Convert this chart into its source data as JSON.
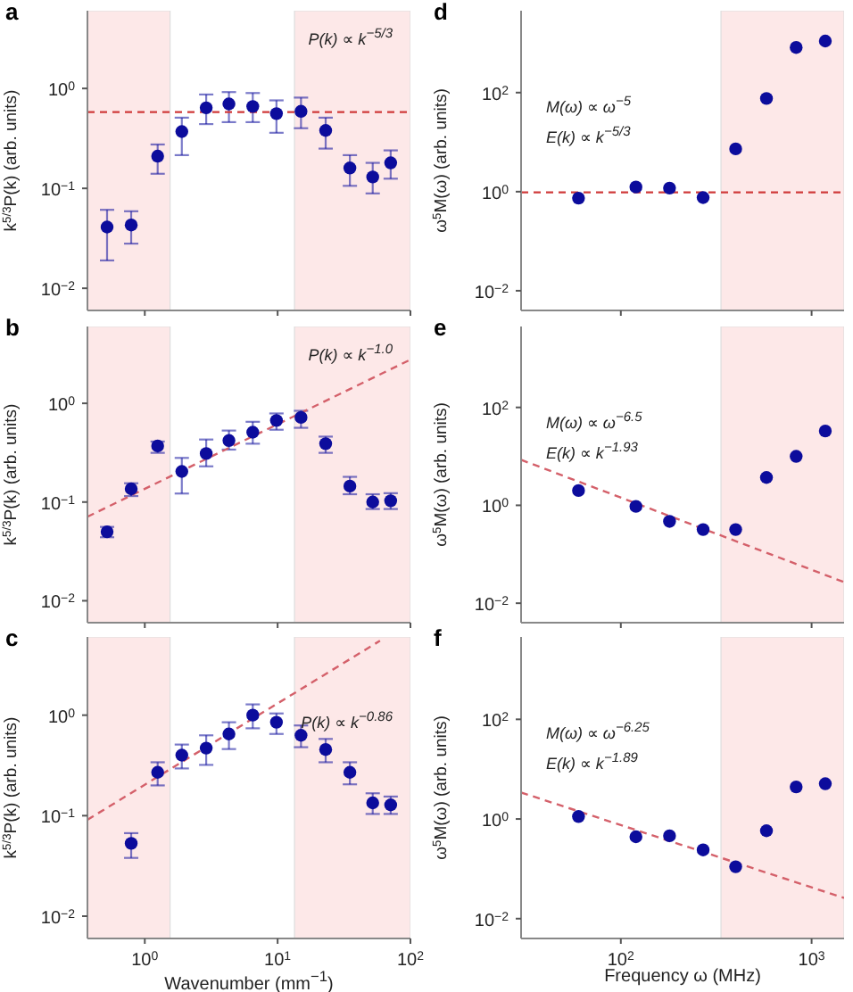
{
  "chart_data": [
    {
      "type": "scatter",
      "title": "a",
      "ylabel": "k$^{5/3}$P(k) (arb. units)",
      "annotations": [
        "P(k) ∝ k$^{−5/3}$"
      ],
      "x": [
        0.52,
        0.79,
        1.25,
        1.9,
        2.9,
        4.3,
        6.5,
        9.8,
        15,
        23,
        35,
        52,
        71
      ],
      "series": [
        {
          "type": "scatter",
          "color": "#0c0c9c",
          "marker": "circle",
          "values": [
            0.041,
            0.043,
            0.21,
            0.37,
            0.64,
            0.7,
            0.66,
            0.56,
            0.59,
            0.38,
            0.16,
            0.13,
            0.18
          ],
          "errors": [
            [
              0.019,
              0.061
            ],
            [
              0.028,
              0.059
            ],
            [
              0.14,
              0.275
            ],
            [
              0.215,
              0.51
            ],
            [
              0.44,
              0.87
            ],
            [
              0.46,
              0.92
            ],
            [
              0.46,
              0.9
            ],
            [
              0.36,
              0.76
            ],
            [
              0.4,
              0.81
            ],
            [
              0.25,
              0.51
            ],
            [
              0.106,
              0.215
            ],
            [
              0.089,
              0.18
            ],
            [
              0.125,
              0.24
            ]
          ]
        },
        {
          "type": "line",
          "color": "#d03a3a",
          "marker": "none",
          "line_style": "dashed",
          "x": [
            0.37,
            100
          ],
          "values": [
            0.58,
            0.58
          ]
        }
      ],
      "xlim": [
        0.37,
        100
      ],
      "ylim": [
        0.006,
        6
      ],
      "xticks": [
        {
          "value": 1,
          "label": null
        },
        {
          "value": 10,
          "label": null
        },
        {
          "value": 100,
          "label": null
        }
      ],
      "yticks": [
        {
          "value": 0.01,
          "label": "10$^{−2}$"
        },
        {
          "value": 0.1,
          "label": "10$^{−1}$"
        },
        {
          "value": 1,
          "label": "10$^{0}$"
        }
      ],
      "log": "xy",
      "tick_labels": "y",
      "bands": [
        {
          "axis": "x",
          "from": 0.37,
          "to": 1.55,
          "color": "#fde8e8"
        },
        {
          "axis": "x",
          "from": 13.4,
          "to": 100,
          "color": "#fde8e8"
        }
      ]
    },
    {
      "type": "scatter",
      "title": "b",
      "ylabel": "k$^{5/3}$P(k) (arb. units)",
      "annotations": [
        "P(k) ∝ k$^{−1.0}$"
      ],
      "x": [
        0.52,
        0.79,
        1.25,
        1.9,
        2.9,
        4.3,
        6.5,
        9.8,
        15,
        23,
        35,
        52,
        71
      ],
      "series": [
        {
          "type": "scatter",
          "color": "#0c0c9c",
          "marker": "circle",
          "values": [
            0.05,
            0.136,
            0.37,
            0.204,
            0.31,
            0.42,
            0.51,
            0.67,
            0.72,
            0.39,
            0.145,
            0.1,
            0.103
          ],
          "errors": [
            [
              0.044,
              0.056
            ],
            [
              0.115,
              0.155
            ],
            [
              0.315,
              0.41
            ],
            [
              0.122,
              0.28
            ],
            [
              0.23,
              0.43
            ],
            [
              0.34,
              0.53
            ],
            [
              0.39,
              0.65
            ],
            [
              0.54,
              0.79
            ],
            [
              0.565,
              0.84
            ],
            [
              0.315,
              0.46
            ],
            [
              0.12,
              0.18
            ],
            [
              0.085,
              0.12
            ],
            [
              0.085,
              0.123
            ]
          ]
        },
        {
          "type": "line",
          "color": "#d4606a",
          "marker": "none",
          "line_style": "dashed",
          "x": [
            0.37,
            100
          ],
          "values": [
            0.071,
            2.77
          ]
        }
      ],
      "xlim": [
        0.37,
        100
      ],
      "ylim": [
        0.006,
        6
      ],
      "xticks": [
        {
          "value": 1,
          "label": null
        },
        {
          "value": 10,
          "label": null
        },
        {
          "value": 100,
          "label": null
        }
      ],
      "yticks": [
        {
          "value": 0.01,
          "label": "10$^{−2}$"
        },
        {
          "value": 0.1,
          "label": "10$^{−1}$"
        },
        {
          "value": 1,
          "label": "10$^{0}$"
        }
      ],
      "log": "xy",
      "tick_labels": "y",
      "bands": [
        {
          "axis": "x",
          "from": 0.37,
          "to": 1.55,
          "color": "#fde8e8"
        },
        {
          "axis": "x",
          "from": 13.4,
          "to": 100,
          "color": "#fde8e8"
        }
      ]
    },
    {
      "type": "scatter",
      "title": "c",
      "ylabel": "k$^{5/3}$P(k) (arb. units)",
      "xlabel": "Wavenumber (mm$^{−1}$)",
      "annotations": [
        "P(k) ∝ k$^{−0.86}$"
      ],
      "x": [
        0.79,
        1.25,
        1.9,
        2.9,
        4.3,
        6.5,
        9.8,
        15,
        23,
        35,
        52,
        71
      ],
      "series": [
        {
          "type": "scatter",
          "color": "#0c0c9c",
          "marker": "circle",
          "values": [
            0.053,
            0.27,
            0.4,
            0.47,
            0.65,
            1.0,
            0.85,
            0.63,
            0.455,
            0.27,
            0.134,
            0.128
          ],
          "errors": [
            [
              0.038,
              0.067
            ],
            [
              0.2,
              0.34
            ],
            [
              0.295,
              0.51
            ],
            [
              0.32,
              0.63
            ],
            [
              0.46,
              0.85
            ],
            [
              0.74,
              1.28
            ],
            [
              0.65,
              1.04
            ],
            [
              0.48,
              0.79
            ],
            [
              0.34,
              0.58
            ],
            [
              0.205,
              0.34
            ],
            [
              0.104,
              0.167
            ],
            [
              0.104,
              0.155
            ]
          ]
        },
        {
          "type": "line",
          "color": "#d4606a",
          "marker": "none",
          "line_style": "dashed",
          "x": [
            0.37,
            59
          ],
          "values": [
            0.091,
            5.5
          ]
        }
      ],
      "xlim": [
        0.37,
        100
      ],
      "ylim": [
        0.006,
        6
      ],
      "xticks": [
        {
          "value": 1,
          "label": "10$^{0}$"
        },
        {
          "value": 10,
          "label": "10$^{1}$"
        },
        {
          "value": 100,
          "label": "10$^{2}$"
        }
      ],
      "yticks": [
        {
          "value": 0.01,
          "label": "10$^{−2}$"
        },
        {
          "value": 0.1,
          "label": "10$^{−1}$"
        },
        {
          "value": 1,
          "label": "10$^{0}$"
        }
      ],
      "log": "xy",
      "bands": [
        {
          "axis": "x",
          "from": 0.37,
          "to": 1.55,
          "color": "#fde8e8"
        },
        {
          "axis": "x",
          "from": 13.4,
          "to": 100,
          "color": "#fde8e8"
        }
      ]
    },
    {
      "type": "scatter",
      "title": "d",
      "ylabel": "ω$^{5}$M(ω) (arb. units)",
      "annotations": [
        "M(ω) ∝ ω$^{−5}$",
        "E(k) ∝ k$^{−5/3}$"
      ],
      "x": [
        60,
        120,
        180,
        270,
        400,
        580,
        830,
        1180
      ],
      "series": [
        {
          "type": "scatter",
          "color": "#0c0c9c",
          "marker": "circle",
          "values": [
            0.74,
            1.24,
            1.18,
            0.76,
            7.3,
            76,
            815,
            1100
          ]
        },
        {
          "type": "line",
          "color": "#d03a3a",
          "marker": "none",
          "line_style": "dashed",
          "x": [
            30,
            1480
          ],
          "values": [
            0.97,
            0.97
          ]
        }
      ],
      "xlim": [
        30,
        1480
      ],
      "ylim": [
        0.004,
        4500
      ],
      "xticks": [
        {
          "value": 100,
          "label": null
        },
        {
          "value": 1000,
          "label": null
        }
      ],
      "yticks": [
        {
          "value": 0.01,
          "label": "10$^{−2}$"
        },
        {
          "value": 1,
          "label": "10$^{0}$"
        },
        {
          "value": 100,
          "label": "10$^{2}$"
        }
      ],
      "log": "xy",
      "tick_labels": "y",
      "bands": [
        {
          "axis": "x",
          "from": 335,
          "to": 1480,
          "color": "#fde8e8"
        }
      ]
    },
    {
      "type": "scatter",
      "title": "e",
      "ylabel": "ω$^{5}$M(ω) (arb. units)",
      "annotations": [
        "M(ω) ∝ ω$^{−6.5}$",
        "E(k) ∝ k$^{−1.93}$"
      ],
      "x": [
        60,
        120,
        180,
        270,
        400,
        580,
        830,
        1180
      ],
      "series": [
        {
          "type": "scatter",
          "color": "#0c0c9c",
          "marker": "circle",
          "values": [
            2.0,
            0.95,
            0.47,
            0.32,
            0.32,
            3.7,
            10,
            33
          ]
        },
        {
          "type": "line",
          "color": "#d4606a",
          "marker": "none",
          "line_style": "dashed",
          "x": [
            30,
            1480
          ],
          "values": [
            8.5,
            0.027
          ]
        }
      ],
      "xlim": [
        30,
        1480
      ],
      "ylim": [
        0.004,
        4500
      ],
      "xticks": [
        {
          "value": 100,
          "label": null
        },
        {
          "value": 1000,
          "label": null
        }
      ],
      "yticks": [
        {
          "value": 0.01,
          "label": "10$^{−2}$"
        },
        {
          "value": 1,
          "label": "10$^{0}$"
        },
        {
          "value": 100,
          "label": "10$^{2}$"
        }
      ],
      "log": "xy",
      "tick_labels": "y",
      "bands": [
        {
          "axis": "x",
          "from": 335,
          "to": 1480,
          "color": "#fde8e8"
        }
      ]
    },
    {
      "type": "scatter",
      "title": "f",
      "ylabel": "ω$^{5}$M(ω) (arb. units)",
      "xlabel": "Frequency ω (MHz)",
      "annotations": [
        "M(ω) ∝ ω$^{−6.25}$",
        "E(k) ∝ k$^{−1.89}$"
      ],
      "x": [
        60,
        120,
        180,
        270,
        400,
        580,
        830,
        1180
      ],
      "series": [
        {
          "type": "scatter",
          "color": "#0c0c9c",
          "marker": "circle",
          "values": [
            1.12,
            0.44,
            0.46,
            0.24,
            0.11,
            0.58,
            4.4,
            5.1
          ]
        },
        {
          "type": "line",
          "color": "#d4606a",
          "marker": "none",
          "line_style": "dashed",
          "x": [
            30,
            1480
          ],
          "values": [
            3.4,
            0.026
          ]
        }
      ],
      "xlim": [
        30,
        1480
      ],
      "ylim": [
        0.004,
        4500
      ],
      "xticks": [
        {
          "value": 100,
          "label": "10$^{2}$"
        },
        {
          "value": 1000,
          "label": "10$^{3}$"
        }
      ],
      "yticks": [
        {
          "value": 0.01,
          "label": "10$^{−2}$"
        },
        {
          "value": 1,
          "label": "10$^{0}$"
        },
        {
          "value": 100,
          "label": "10$^{2}$"
        }
      ],
      "log": "xy",
      "bands": [
        {
          "axis": "x",
          "from": 335,
          "to": 1480,
          "color": "#fde8e8"
        }
      ]
    }
  ]
}
